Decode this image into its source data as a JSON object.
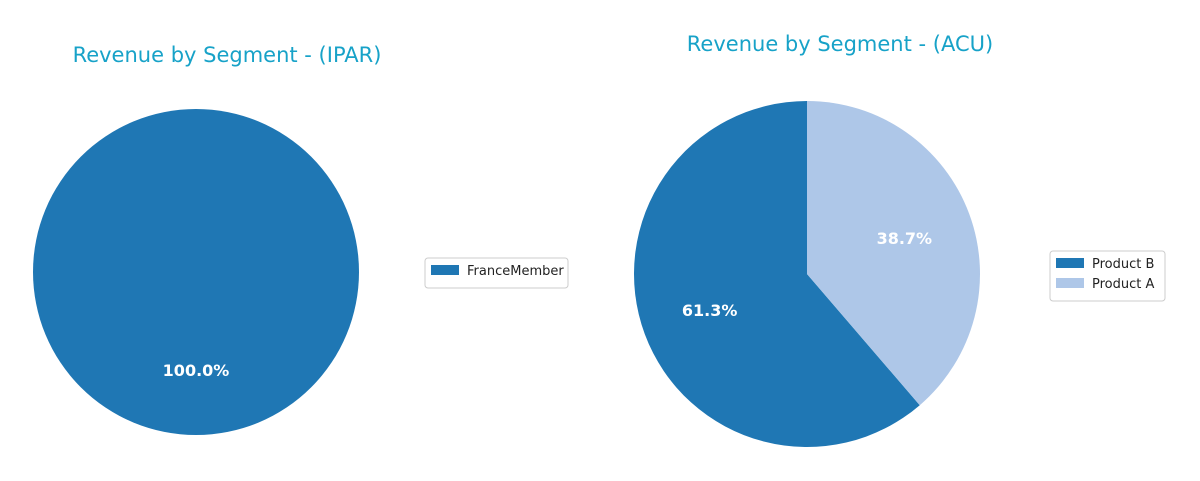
{
  "theme": {
    "title_color": "#17a2c8",
    "label_color": "#ffffff"
  },
  "chart_data": [
    {
      "type": "pie",
      "title": "Revenue by Segment - (IPAR)",
      "slices": [
        {
          "label": "FranceMember",
          "value": 100.0,
          "display": "100.0%",
          "color": "#1f77b4"
        }
      ],
      "legend": {
        "placement": "right",
        "entries": [
          "FranceMember"
        ]
      }
    },
    {
      "type": "pie",
      "title": "Revenue by Segment - (ACU)",
      "slices": [
        {
          "label": "Product B",
          "value": 61.3,
          "display": "61.3%",
          "color": "#1f77b4"
        },
        {
          "label": "Product A",
          "value": 38.7,
          "display": "38.7%",
          "color": "#aec7e8"
        }
      ],
      "legend": {
        "placement": "right",
        "entries": [
          "Product B",
          "Product A"
        ]
      }
    }
  ]
}
